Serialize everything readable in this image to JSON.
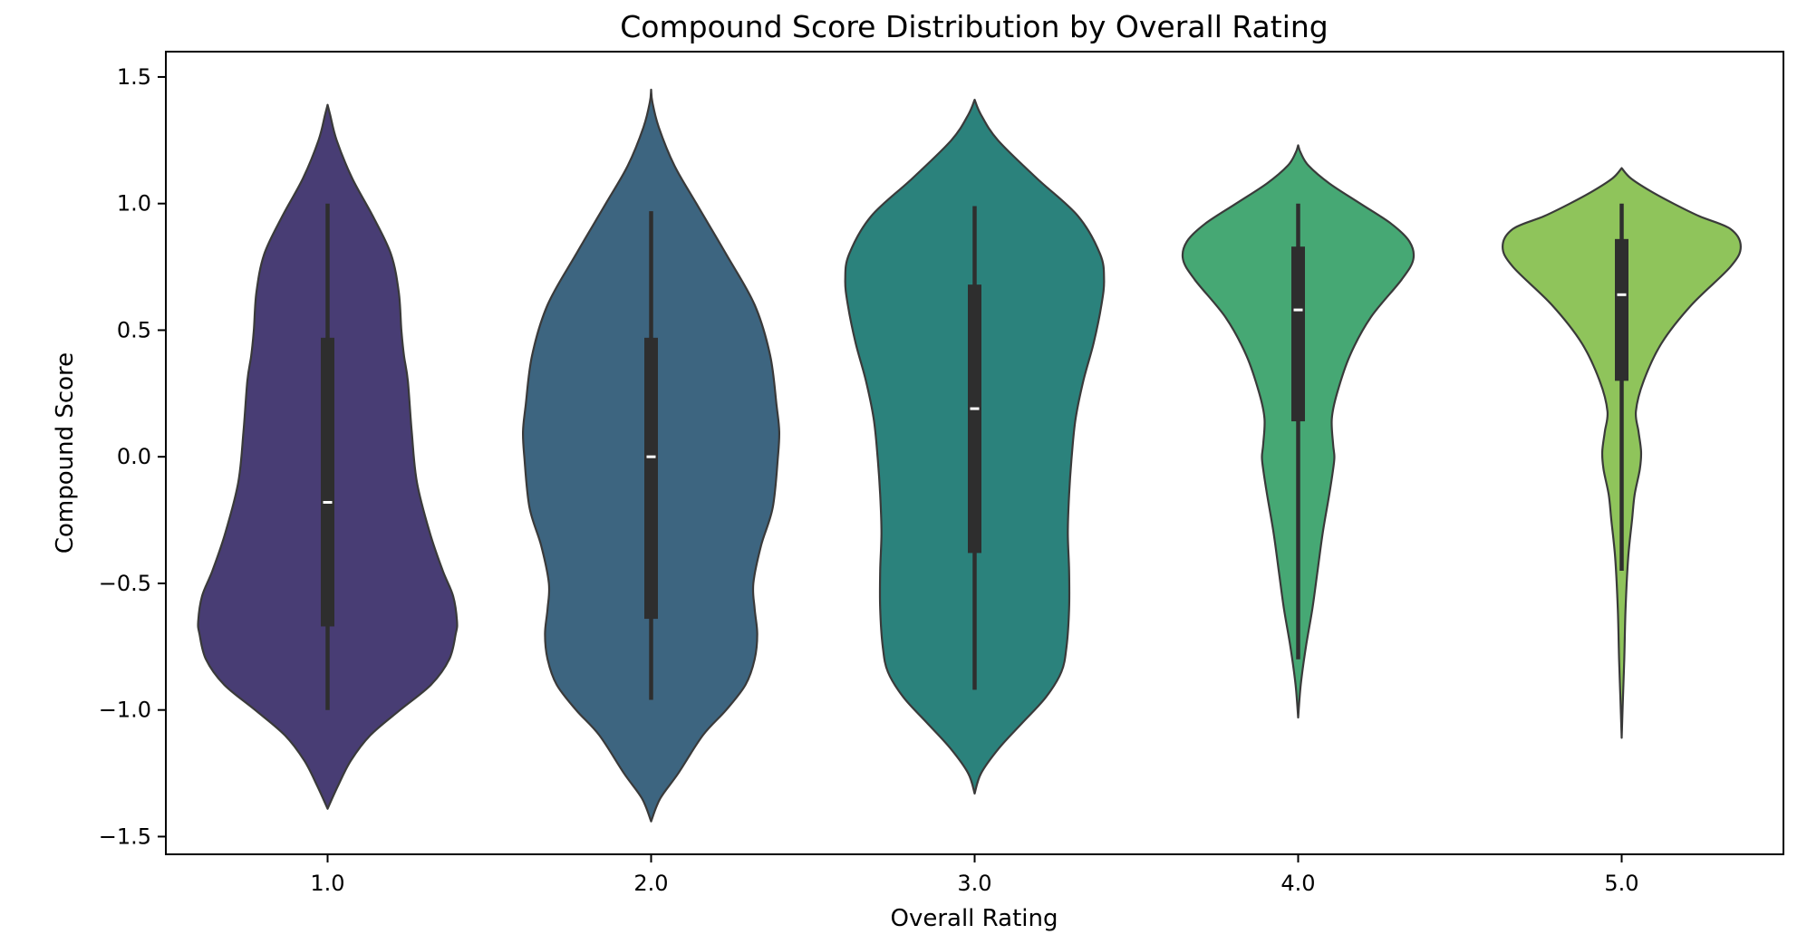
{
  "chart_data": {
    "type": "violin",
    "title": "Compound Score Distribution by Overall Rating",
    "xlabel": "Overall Rating",
    "ylabel": "Compound Score",
    "categories": [
      "1.0",
      "2.0",
      "3.0",
      "4.0",
      "5.0"
    ],
    "ylim": [
      -1.57,
      1.6
    ],
    "yticks": [
      -1.5,
      -1.0,
      -0.5,
      0.0,
      0.5,
      1.0,
      1.5
    ],
    "ytick_labels": [
      "−1.5",
      "−1.0",
      "−0.5",
      "0.0",
      "0.5",
      "1.0",
      "1.5"
    ],
    "grid": false,
    "legend": "none",
    "colors": [
      "#483d74",
      "#3d6580",
      "#2b827c",
      "#46a874",
      "#8fc45b"
    ],
    "outline_color": "#3a3a3a",
    "box_color": "#2e2e2e",
    "median_color": "#ffffff",
    "violins": [
      {
        "category": "1.0",
        "min": -1.0,
        "q1": -0.67,
        "median": -0.18,
        "q3": 0.47,
        "max": 1.0,
        "profile": [
          [
            -1.39,
            0.0
          ],
          [
            -1.3,
            0.08
          ],
          [
            -1.2,
            0.18
          ],
          [
            -1.1,
            0.33
          ],
          [
            -1.0,
            0.56
          ],
          [
            -0.9,
            0.8
          ],
          [
            -0.8,
            0.94
          ],
          [
            -0.7,
            0.99
          ],
          [
            -0.65,
            1.0
          ],
          [
            -0.55,
            0.97
          ],
          [
            -0.45,
            0.89
          ],
          [
            -0.3,
            0.79
          ],
          [
            -0.1,
            0.69
          ],
          [
            0.1,
            0.65
          ],
          [
            0.3,
            0.62
          ],
          [
            0.4,
            0.59
          ],
          [
            0.5,
            0.57
          ],
          [
            0.65,
            0.55
          ],
          [
            0.8,
            0.49
          ],
          [
            0.95,
            0.35
          ],
          [
            1.1,
            0.19
          ],
          [
            1.25,
            0.07
          ],
          [
            1.35,
            0.02
          ],
          [
            1.39,
            0.0
          ]
        ]
      },
      {
        "category": "2.0",
        "min": -0.96,
        "q1": -0.64,
        "median": 0.0,
        "q3": 0.47,
        "max": 0.97,
        "profile": [
          [
            -1.44,
            0.0
          ],
          [
            -1.35,
            0.07
          ],
          [
            -1.25,
            0.21
          ],
          [
            -1.1,
            0.4
          ],
          [
            -1.0,
            0.58
          ],
          [
            -0.9,
            0.73
          ],
          [
            -0.8,
            0.8
          ],
          [
            -0.7,
            0.82
          ],
          [
            -0.6,
            0.8
          ],
          [
            -0.5,
            0.79
          ],
          [
            -0.35,
            0.85
          ],
          [
            -0.2,
            0.94
          ],
          [
            0.0,
            0.98
          ],
          [
            0.1,
            0.99
          ],
          [
            0.2,
            0.97
          ],
          [
            0.4,
            0.92
          ],
          [
            0.6,
            0.8
          ],
          [
            0.8,
            0.58
          ],
          [
            1.0,
            0.35
          ],
          [
            1.15,
            0.18
          ],
          [
            1.3,
            0.06
          ],
          [
            1.4,
            0.01
          ],
          [
            1.45,
            0.0
          ]
        ]
      },
      {
        "category": "3.0",
        "min": -0.92,
        "q1": -0.38,
        "median": 0.19,
        "q3": 0.68,
        "max": 0.99,
        "profile": [
          [
            -1.33,
            0.0
          ],
          [
            -1.25,
            0.05
          ],
          [
            -1.15,
            0.19
          ],
          [
            -1.05,
            0.37
          ],
          [
            -0.95,
            0.55
          ],
          [
            -0.85,
            0.67
          ],
          [
            -0.75,
            0.71
          ],
          [
            -0.6,
            0.73
          ],
          [
            -0.45,
            0.73
          ],
          [
            -0.3,
            0.72
          ],
          [
            -0.15,
            0.73
          ],
          [
            0.0,
            0.75
          ],
          [
            0.15,
            0.78
          ],
          [
            0.3,
            0.84
          ],
          [
            0.45,
            0.92
          ],
          [
            0.6,
            0.98
          ],
          [
            0.7,
            1.0
          ],
          [
            0.8,
            0.97
          ],
          [
            0.95,
            0.8
          ],
          [
            1.1,
            0.48
          ],
          [
            1.25,
            0.18
          ],
          [
            1.35,
            0.05
          ],
          [
            1.41,
            0.0
          ]
        ]
      },
      {
        "category": "4.0",
        "min": -0.8,
        "q1": 0.14,
        "median": 0.58,
        "q3": 0.83,
        "max": 1.0,
        "profile": [
          [
            -1.03,
            0.0
          ],
          [
            -0.9,
            0.02
          ],
          [
            -0.75,
            0.06
          ],
          [
            -0.6,
            0.11
          ],
          [
            -0.45,
            0.15
          ],
          [
            -0.3,
            0.19
          ],
          [
            -0.15,
            0.24
          ],
          [
            -0.05,
            0.27
          ],
          [
            0.0,
            0.28
          ],
          [
            0.05,
            0.27
          ],
          [
            0.15,
            0.26
          ],
          [
            0.25,
            0.3
          ],
          [
            0.4,
            0.4
          ],
          [
            0.55,
            0.56
          ],
          [
            0.7,
            0.8
          ],
          [
            0.78,
            0.89
          ],
          [
            0.85,
            0.86
          ],
          [
            0.92,
            0.72
          ],
          [
            1.0,
            0.48
          ],
          [
            1.08,
            0.24
          ],
          [
            1.15,
            0.08
          ],
          [
            1.2,
            0.02
          ],
          [
            1.23,
            0.0
          ]
        ]
      },
      {
        "category": "5.0",
        "min": -0.45,
        "q1": 0.3,
        "median": 0.64,
        "q3": 0.86,
        "max": 1.0,
        "profile": [
          [
            -1.11,
            0.0
          ],
          [
            -0.95,
            0.01
          ],
          [
            -0.8,
            0.02
          ],
          [
            -0.6,
            0.03
          ],
          [
            -0.4,
            0.05
          ],
          [
            -0.25,
            0.08
          ],
          [
            -0.15,
            0.1
          ],
          [
            -0.05,
            0.14
          ],
          [
            0.02,
            0.15
          ],
          [
            0.1,
            0.13
          ],
          [
            0.18,
            0.11
          ],
          [
            0.3,
            0.17
          ],
          [
            0.45,
            0.31
          ],
          [
            0.6,
            0.54
          ],
          [
            0.75,
            0.84
          ],
          [
            0.83,
            0.92
          ],
          [
            0.9,
            0.84
          ],
          [
            0.95,
            0.6
          ],
          [
            1.0,
            0.4
          ],
          [
            1.05,
            0.22
          ],
          [
            1.1,
            0.07
          ],
          [
            1.14,
            0.0
          ]
        ]
      }
    ]
  }
}
